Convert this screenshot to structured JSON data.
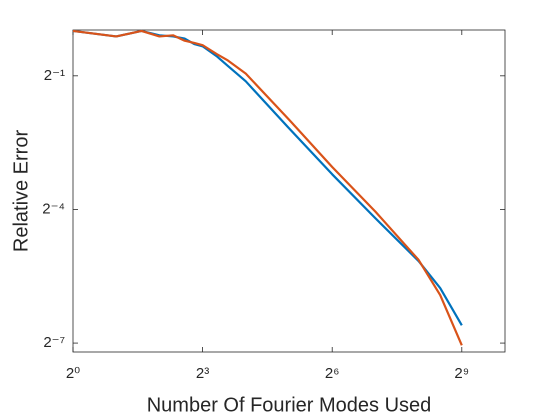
{
  "chart_data": {
    "type": "line",
    "x_label": "Number Of Fourier Modes Used",
    "y_label": "Relative Error",
    "x_scale": "log",
    "y_scale": "log",
    "x": [
      1,
      2,
      3,
      4,
      5,
      6,
      7,
      8,
      10,
      12,
      16,
      32,
      64,
      128,
      256,
      362,
      512
    ],
    "series": [
      {
        "color": "#0072BD",
        "values": [
          1.005,
          0.923,
          1.005,
          0.939,
          0.923,
          0.892,
          0.82,
          0.792,
          0.68,
          0.583,
          0.459,
          0.221,
          0.108,
          0.0545,
          0.028,
          0.0184,
          0.0103
        ]
      },
      {
        "color": "#D95319",
        "values": [
          1.005,
          0.923,
          1.005,
          0.923,
          0.939,
          0.863,
          0.834,
          0.806,
          0.703,
          0.635,
          0.517,
          0.253,
          0.121,
          0.0604,
          0.0285,
          0.0165,
          0.00755
        ]
      }
    ],
    "xlim": [
      1,
      1024
    ],
    "ylim": [
      0.0068,
      1.02
    ],
    "xticks": [
      {
        "value": 1,
        "label": "2⁰"
      },
      {
        "value": 8,
        "label": "2³"
      },
      {
        "value": 64,
        "label": "2⁶"
      },
      {
        "value": 512,
        "label": "2⁹"
      }
    ],
    "yticks": [
      {
        "value": 0.5,
        "label": "2⁻¹"
      },
      {
        "value": 0.0625,
        "label": "2⁻⁴"
      },
      {
        "value": 0.0078125,
        "label": "2⁻⁷"
      }
    ],
    "grid": false
  }
}
